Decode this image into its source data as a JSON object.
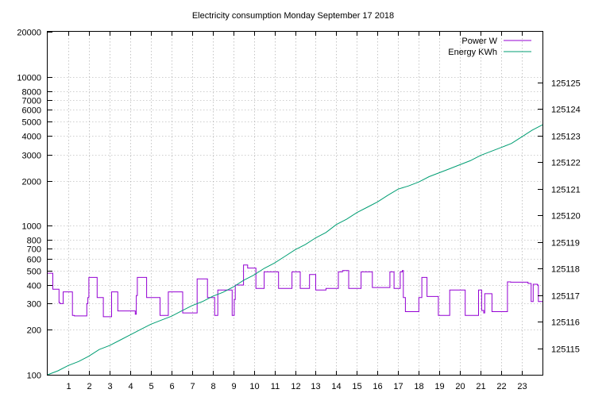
{
  "chart_data": {
    "type": "line",
    "title": "Electricity consumption Monday September 17 2018",
    "xlabel": "",
    "ylabel": "",
    "y2label": "",
    "x_range": [
      0,
      24
    ],
    "x_ticks": [
      1,
      2,
      3,
      4,
      5,
      6,
      7,
      8,
      9,
      10,
      11,
      12,
      13,
      14,
      15,
      16,
      17,
      18,
      19,
      20,
      21,
      22,
      23
    ],
    "y_scale": "log",
    "y_range": [
      100,
      20000
    ],
    "y_ticks": [
      {
        "value": 100,
        "label": "100"
      },
      {
        "value": 200,
        "label": "200"
      },
      {
        "value": 300,
        "label": "300"
      },
      {
        "value": 400,
        "label": "400"
      },
      {
        "value": 500,
        "label": "500"
      },
      {
        "value": 600,
        "label": "600"
      },
      {
        "value": 700,
        "label": "700"
      },
      {
        "value": 800,
        "label": "800"
      },
      {
        "value": 1000,
        "label": "1000"
      },
      {
        "value": 2000,
        "label": "2000"
      },
      {
        "value": 3000,
        "label": "3000"
      },
      {
        "value": 4000,
        "label": "4000"
      },
      {
        "value": 5000,
        "label": "5000"
      },
      {
        "value": 6000,
        "label": "6000"
      },
      {
        "value": 7000,
        "label": "7000"
      },
      {
        "value": 8000,
        "label": "8000"
      },
      {
        "value": 10000,
        "label": "10000"
      },
      {
        "value": 20000,
        "label": "20000"
      }
    ],
    "y2_scale": "log",
    "y2_range": [
      125114.0,
      125126.9
    ],
    "y2_ticks": [
      {
        "value": 125115,
        "label": "125115"
      },
      {
        "value": 125116,
        "label": "125116"
      },
      {
        "value": 125117,
        "label": "125117"
      },
      {
        "value": 125118,
        "label": "125118"
      },
      {
        "value": 125119,
        "label": "125119"
      },
      {
        "value": 125120,
        "label": "125120"
      },
      {
        "value": 125121,
        "label": "125121"
      },
      {
        "value": 125122,
        "label": "125122"
      },
      {
        "value": 125123,
        "label": "125123"
      },
      {
        "value": 125124,
        "label": "125124"
      },
      {
        "value": 125125,
        "label": "125125"
      }
    ],
    "grid": true,
    "legend_position": "top-right",
    "series": [
      {
        "name": "Power W",
        "axis": "y",
        "color": "#9400d3",
        "style": "step",
        "x": [
          0,
          0.25,
          0.3,
          0.55,
          0.6,
          0.75,
          0.8,
          1.2,
          1.3,
          1.85,
          1.9,
          1.95,
          2.0,
          2.35,
          2.4,
          2.65,
          2.7,
          3.05,
          3.1,
          3.35,
          3.4,
          4.2,
          4.25,
          4.3,
          4.35,
          4.75,
          4.8,
          5.4,
          5.45,
          5.8,
          5.85,
          6.5,
          6.55,
          6.9,
          6.95,
          7.25,
          7.3,
          7.75,
          7.8,
          8.1,
          8.15,
          8.25,
          8.3,
          8.95,
          9.0,
          9.05,
          9.1,
          9.5,
          9.55,
          9.7,
          10.1,
          10.15,
          10.5,
          10.55,
          11.2,
          11.25,
          11.85,
          11.9,
          12.25,
          12.3,
          12.7,
          12.75,
          13.0,
          13.05,
          13.5,
          13.55,
          14.1,
          14.15,
          14.2,
          14.3,
          14.6,
          14.65,
          15.2,
          15.25,
          15.75,
          15.8,
          16.6,
          16.65,
          16.75,
          16.8,
          17.1,
          17.15,
          17.2,
          17.25,
          17.35,
          17.4,
          17.95,
          18.0,
          18.15,
          18.2,
          18.4,
          18.45,
          18.9,
          18.95,
          19.1,
          19.15,
          19.5,
          19.55,
          20.25,
          20.3,
          20.9,
          20.95,
          21.05,
          21.1,
          21.15,
          21.2,
          21.5,
          21.55,
          22.15,
          22.2,
          22.3,
          22.35,
          22.45,
          22.5,
          23.25,
          23.3,
          23.4,
          23.45,
          23.55,
          23.6,
          23.75,
          23.8,
          24.0
        ],
        "y": [
          480,
          375,
          375,
          305,
          300,
          360,
          360,
          250,
          248,
          248,
          300,
          330,
          450,
          450,
          330,
          330,
          245,
          245,
          360,
          360,
          268,
          268,
          255,
          340,
          450,
          450,
          330,
          330,
          250,
          250,
          360,
          360,
          260,
          260,
          260,
          440,
          440,
          330,
          330,
          250,
          250,
          370,
          370,
          250,
          250,
          320,
          400,
          545,
          545,
          520,
          380,
          380,
          490,
          490,
          380,
          380,
          490,
          490,
          380,
          380,
          470,
          470,
          370,
          370,
          380,
          380,
          490,
          490,
          490,
          500,
          380,
          380,
          490,
          490,
          385,
          385,
          490,
          490,
          490,
          380,
          490,
          490,
          500,
          330,
          265,
          265,
          265,
          330,
          450,
          450,
          335,
          335,
          335,
          250,
          250,
          250,
          370,
          370,
          250,
          250,
          370,
          370,
          270,
          270,
          260,
          350,
          350,
          265,
          265,
          265,
          420,
          420,
          418,
          418,
          418,
          410,
          410,
          310,
          405,
          405,
          400,
          310,
          310
        ]
      },
      {
        "name": "Energy KWh",
        "axis": "y2",
        "color": "#009e73",
        "style": "line",
        "x": [
          0,
          0.5,
          1,
          1.5,
          2,
          2.5,
          3,
          3.5,
          4,
          4.5,
          5,
          5.5,
          6,
          6.5,
          7,
          7.5,
          8,
          8.5,
          9,
          9.5,
          10,
          10.5,
          11,
          11.5,
          12,
          12.5,
          13,
          13.5,
          14,
          14.5,
          15,
          15.5,
          16,
          16.5,
          17,
          17.5,
          18,
          18.5,
          19,
          19.5,
          20,
          20.5,
          21,
          21.5,
          22,
          22.5,
          23,
          23.5,
          24
        ],
        "y": [
          125114.0,
          125114.15,
          125114.35,
          125114.5,
          125114.7,
          125114.95,
          125115.1,
          125115.3,
          125115.5,
          125115.7,
          125115.9,
          125116.05,
          125116.2,
          125116.4,
          125116.6,
          125116.75,
          125116.95,
          125117.1,
          125117.3,
          125117.55,
          125117.75,
          125118.0,
          125118.2,
          125118.45,
          125118.7,
          125118.9,
          125119.15,
          125119.35,
          125119.65,
          125119.85,
          125120.1,
          125120.3,
          125120.5,
          125120.75,
          125120.98,
          125121.1,
          125121.25,
          125121.45,
          125121.6,
          125121.75,
          125121.9,
          125122.05,
          125122.25,
          125122.4,
          125122.55,
          125122.7,
          125122.95,
          125123.2,
          125123.4
        ]
      }
    ]
  }
}
